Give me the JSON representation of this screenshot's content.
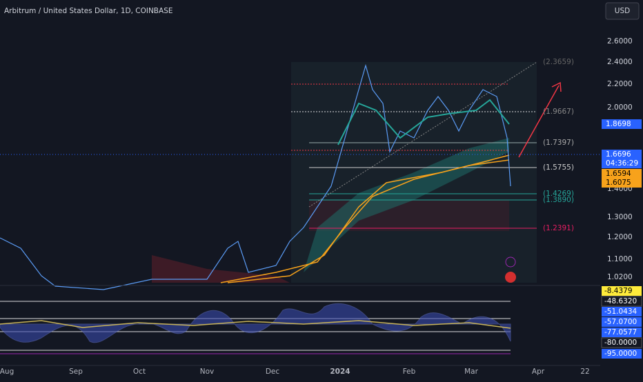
{
  "header": {
    "title": "Arbitrum / United States Dollar, 1D, COINBASE",
    "currency": "USD"
  },
  "price_axis": [
    "2.6000",
    "2.4000",
    "2.2000",
    "2.0000",
    "1.4000",
    "1.3000",
    "1.2000",
    "1.1000",
    "1.0200"
  ],
  "price_tags": [
    "1.8698",
    "1.6696",
    "04:36:29",
    "1.6594",
    "1.6075"
  ],
  "fib_levels": [
    "(2.3659)",
    "(1.9667)",
    "(1.7397)",
    "(1.5755)",
    "(1.4269)",
    "(1.3890)",
    "(1.2391)"
  ],
  "oscillator_tags": [
    "-8.4379",
    "-48.6320",
    "-51.0434",
    "-57.0700",
    "-77.0577",
    "-80.0000",
    "-95.0000"
  ],
  "time_axis": [
    "Aug",
    "Sep",
    "Oct",
    "Nov",
    "Dec",
    "2024",
    "Feb",
    "Mar",
    "Apr",
    "22"
  ]
}
